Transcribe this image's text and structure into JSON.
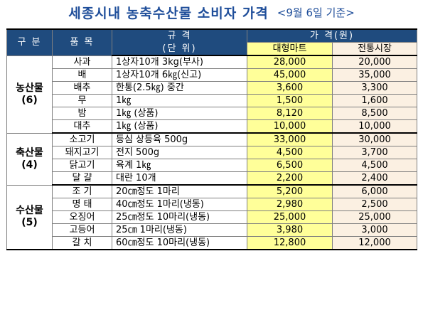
{
  "title": {
    "main": "세종시내 농축수산물 소비자 가격",
    "date": "<9월 6일 기준>"
  },
  "headers": {
    "category": "구 분",
    "item": "품 목",
    "spec_line1": "규 격",
    "spec_line2": "(단 위)",
    "price_line1": "가 격(원)",
    "mart": "대형마트",
    "market": "전통시장"
  },
  "sections": [
    {
      "name": "농산물",
      "count": "(6)",
      "rows": [
        {
          "item": "사과",
          "spec": "1상자10개 3kg(부사)",
          "mart": "28,000",
          "market": "20,000"
        },
        {
          "item": "배",
          "spec": "1상자10개 6㎏(신고)",
          "mart": "45,000",
          "market": "35,000"
        },
        {
          "item": "배추",
          "spec": "한통(2.5㎏) 중간",
          "mart": "3,600",
          "market": "3,300"
        },
        {
          "item": "무",
          "spec": "1㎏",
          "mart": "1,500",
          "market": "1,600"
        },
        {
          "item": "밤",
          "spec": "1㎏ (상품)",
          "mart": "8,120",
          "market": "8,500"
        },
        {
          "item": "대추",
          "spec": "1㎏ (상품)",
          "mart": "10,000",
          "market": "10,000"
        }
      ]
    },
    {
      "name": "축산물",
      "count": "(4)",
      "rows": [
        {
          "item": "소고기",
          "spec": "등심 상등육 500g",
          "mart": "33,000",
          "market": "30,000"
        },
        {
          "item": "돼지고기",
          "spec": "전지 500g",
          "mart": "4,500",
          "market": "3,700"
        },
        {
          "item": "닭고기",
          "spec": "육계 1㎏",
          "mart": "6,500",
          "market": "4,500"
        },
        {
          "item": "달 걀",
          "spec": "대란 10개",
          "mart": "2,200",
          "market": "2,400"
        }
      ]
    },
    {
      "name": "수산물",
      "count": "(5)",
      "rows": [
        {
          "item": "조 기",
          "spec": "20㎝정도 1마리",
          "mart": "5,200",
          "market": "6,000"
        },
        {
          "item": "명 태",
          "spec": "40㎝정도 1마리(냉동)",
          "mart": "2,980",
          "market": "2,500"
        },
        {
          "item": "오징어",
          "spec": "25㎝정도 10마리(냉동)",
          "mart": "25,000",
          "market": "25,000"
        },
        {
          "item": "고등어",
          "spec": "25㎝ 1마리(냉동)",
          "mart": "3,980",
          "market": "3,000"
        },
        {
          "item": "갈 치",
          "spec": "60㎝정도 10마리(냉동)",
          "mart": "12,800",
          "market": "12,000"
        }
      ]
    }
  ],
  "colors": {
    "header_bg": "#1F4B7E",
    "title": "#1F4E9A",
    "mart_bg": "#FFFF99",
    "market_bg": "#FBF0E2"
  }
}
